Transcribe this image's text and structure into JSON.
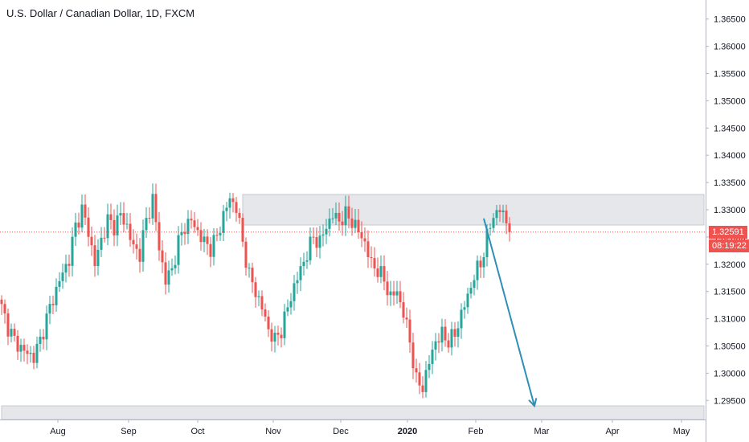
{
  "header": {
    "title": "U.S. Dollar / Canadian Dollar, 1D, FXCM"
  },
  "price_axis": {
    "ticks": [
      "1.36500",
      "1.36000",
      "1.35500",
      "1.35000",
      "1.34500",
      "1.34000",
      "1.33500",
      "1.33000",
      "1.32500",
      "1.32000",
      "1.31500",
      "1.31000",
      "1.30500",
      "1.30000",
      "1.29500"
    ],
    "current_price": "1.32591",
    "countdown": "08:19:22"
  },
  "time_axis": {
    "labels": [
      "Aug",
      "Sep",
      "Oct",
      "Nov",
      "Dec",
      "2020",
      "Feb",
      "Mar",
      "Apr",
      "May"
    ]
  },
  "colors": {
    "up": "#26a69a",
    "down": "#ef5350",
    "zone": "#e6e7eb",
    "arrow": "#2e8fb8",
    "price_line": "#ef5350"
  },
  "chart_data": {
    "type": "candlestick",
    "symbol": "U.S. Dollar / Canadian Dollar",
    "interval": "1D",
    "source": "FXCM",
    "ylim": [
      1.2915,
      1.3685
    ],
    "last_price": 1.32591,
    "x_dates": [
      "Aug",
      "Sep",
      "Oct",
      "Nov",
      "Dec",
      "2020",
      "Feb",
      "Mar",
      "Apr",
      "May"
    ],
    "anchors": [
      [
        0,
        1.312
      ],
      [
        2,
        1.3085
      ],
      [
        4,
        1.306
      ],
      [
        7,
        1.304
      ],
      [
        10,
        1.303
      ],
      [
        12,
        1.306
      ],
      [
        15,
        1.312
      ],
      [
        18,
        1.317
      ],
      [
        21,
        1.321
      ],
      [
        23,
        1.327
      ],
      [
        25,
        1.33
      ],
      [
        27,
        1.326
      ],
      [
        29,
        1.32
      ],
      [
        31,
        1.3245
      ],
      [
        33,
        1.328
      ],
      [
        35,
        1.327
      ],
      [
        37,
        1.329
      ],
      [
        39,
        1.327
      ],
      [
        41,
        1.323
      ],
      [
        43,
        1.322
      ],
      [
        45,
        1.328
      ],
      [
        47,
        1.332
      ],
      [
        49,
        1.323
      ],
      [
        51,
        1.317
      ],
      [
        53,
        1.319
      ],
      [
        55,
        1.324
      ],
      [
        57,
        1.327
      ],
      [
        59,
        1.328
      ],
      [
        61,
        1.326
      ],
      [
        63,
        1.324
      ],
      [
        65,
        1.323
      ],
      [
        67,
        1.325
      ],
      [
        69,
        1.329
      ],
      [
        71,
        1.332
      ],
      [
        73,
        1.3305
      ],
      [
        75,
        1.324
      ],
      [
        77,
        1.318
      ],
      [
        79,
        1.315
      ],
      [
        81,
        1.312
      ],
      [
        83,
        1.308
      ],
      [
        85,
        1.306
      ],
      [
        87,
        1.308
      ],
      [
        89,
        1.312
      ],
      [
        91,
        1.316
      ],
      [
        93,
        1.319
      ],
      [
        95,
        1.322
      ],
      [
        97,
        1.325
      ],
      [
        99,
        1.324
      ],
      [
        101,
        1.327
      ],
      [
        103,
        1.329
      ],
      [
        105,
        1.328
      ],
      [
        107,
        1.329
      ],
      [
        109,
        1.328
      ],
      [
        111,
        1.326
      ],
      [
        113,
        1.324
      ],
      [
        115,
        1.32
      ],
      [
        117,
        1.319
      ],
      [
        119,
        1.317
      ],
      [
        121,
        1.314
      ],
      [
        123,
        1.315
      ],
      [
        125,
        1.311
      ],
      [
        127,
        1.306
      ],
      [
        129,
        1.2985
      ],
      [
        131,
        1.2975
      ],
      [
        133,
        1.302
      ],
      [
        135,
        1.306
      ],
      [
        137,
        1.307
      ],
      [
        139,
        1.306
      ],
      [
        141,
        1.307
      ],
      [
        143,
        1.311
      ],
      [
        145,
        1.314
      ],
      [
        147,
        1.318
      ],
      [
        149,
        1.32
      ],
      [
        151,
        1.325
      ],
      [
        153,
        1.329
      ],
      [
        155,
        1.33
      ],
      [
        157,
        1.328
      ],
      [
        158,
        1.3259
      ]
    ],
    "zones": [
      {
        "start_index": 75,
        "end": "right-edge",
        "y_top": 1.3328,
        "y_bottom": 1.3272
      },
      {
        "start_index": 0,
        "end": "right-edge",
        "y_top": 1.294,
        "y_bottom": 1.2915
      }
    ],
    "arrow": {
      "from": [
        150,
        1.3284
      ],
      "to": [
        165,
        1.294
      ]
    },
    "grid": false,
    "legend": "none"
  }
}
